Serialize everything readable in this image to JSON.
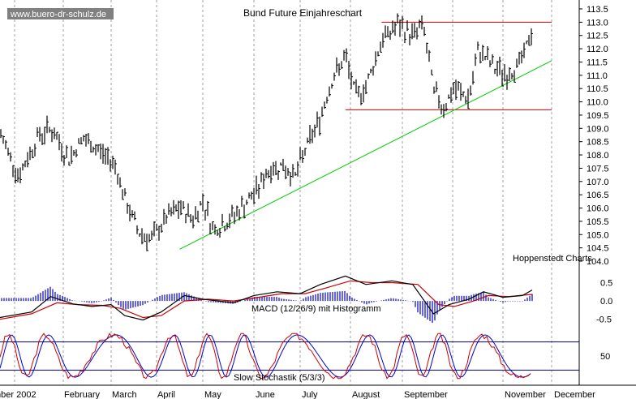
{
  "chart_data": {
    "type": "candlestick",
    "title": "Bund Future Einjahreschart",
    "source_label": "www.buero-dr-schulz.de",
    "provider_label": "Hoppenstedt Charts",
    "price_panel": {
      "y_ticks": [
        "113.5",
        "113.0",
        "112.5",
        "112.0",
        "111.5",
        "111.0",
        "110.5",
        "110.0",
        "109.5",
        "109.0",
        "108.5",
        "108.0",
        "107.5",
        "107.0",
        "106.5",
        "106.0",
        "105.5",
        "105.0",
        "104.5",
        "104.0"
      ],
      "ylim": [
        104.0,
        113.5
      ],
      "x_months": [
        "mber 2002",
        "February",
        "March",
        "April",
        "May",
        "June",
        "July",
        "August",
        "September",
        "November",
        "December"
      ],
      "price_path": [
        {
          "m": 0.0,
          "v": 108.8
        },
        {
          "m": 0.3,
          "v": 107.2
        },
        {
          "m": 0.6,
          "v": 108.7
        },
        {
          "m": 0.8,
          "v": 109.0
        },
        {
          "m": 1.1,
          "v": 107.8
        },
        {
          "m": 1.4,
          "v": 108.6
        },
        {
          "m": 1.8,
          "v": 108.1
        },
        {
          "m": 2.1,
          "v": 107.6
        },
        {
          "m": 2.3,
          "v": 106.3
        },
        {
          "m": 2.6,
          "v": 105.1
        },
        {
          "m": 2.9,
          "v": 104.8
        },
        {
          "m": 3.2,
          "v": 105.6
        },
        {
          "m": 3.5,
          "v": 106.0
        },
        {
          "m": 3.8,
          "v": 105.6
        },
        {
          "m": 4.0,
          "v": 106.3
        },
        {
          "m": 4.2,
          "v": 105.2
        },
        {
          "m": 4.5,
          "v": 105.5
        },
        {
          "m": 4.8,
          "v": 106.1
        },
        {
          "m": 5.0,
          "v": 106.5
        },
        {
          "m": 5.3,
          "v": 107.4
        },
        {
          "m": 5.6,
          "v": 107.6
        },
        {
          "m": 5.9,
          "v": 107.2
        },
        {
          "m": 6.1,
          "v": 108.2
        },
        {
          "m": 6.4,
          "v": 109.4
        },
        {
          "m": 6.6,
          "v": 110.7
        },
        {
          "m": 6.9,
          "v": 111.7
        },
        {
          "m": 7.1,
          "v": 110.2
        },
        {
          "m": 7.3,
          "v": 110.6
        },
        {
          "m": 7.6,
          "v": 112.3
        },
        {
          "m": 7.9,
          "v": 112.9
        },
        {
          "m": 8.2,
          "v": 112.5
        },
        {
          "m": 8.4,
          "v": 112.9
        },
        {
          "m": 8.6,
          "v": 110.4
        },
        {
          "m": 8.8,
          "v": 109.8
        },
        {
          "m": 9.0,
          "v": 110.5
        },
        {
          "m": 9.3,
          "v": 110.1
        },
        {
          "m": 9.5,
          "v": 112.0
        },
        {
          "m": 9.8,
          "v": 111.3
        },
        {
          "m": 10.1,
          "v": 111.0
        },
        {
          "m": 10.4,
          "v": 111.6
        },
        {
          "m": 10.6,
          "v": 112.7
        }
      ],
      "lines": [
        {
          "name": "resistance",
          "color": "#cc0000",
          "from": {
            "m": 7.6,
            "v": 113.0
          },
          "to": {
            "m": 11.0,
            "v": 113.0
          }
        },
        {
          "name": "support",
          "color": "#cc0000",
          "from": {
            "m": 6.9,
            "v": 109.7
          },
          "to": {
            "m": 11.0,
            "v": 109.7
          }
        },
        {
          "name": "uptrend",
          "color": "#00cc00",
          "from": {
            "m": 3.5,
            "v": 104.45
          },
          "to": {
            "m": 11.0,
            "v": 111.55
          }
        }
      ],
      "candle_color": "#000000"
    },
    "macd_panel": {
      "label": "MACD (12/26/9) mit Histogramm",
      "y_ticks": [
        "0.5",
        "0.0",
        "-0.5"
      ],
      "ylim": [
        -0.75,
        0.8
      ],
      "macd_path": [
        {
          "m": 0.0,
          "v": -0.45
        },
        {
          "m": 0.5,
          "v": -0.3
        },
        {
          "m": 0.8,
          "v": 0.12
        },
        {
          "m": 1.2,
          "v": -0.08
        },
        {
          "m": 1.6,
          "v": -0.15
        },
        {
          "m": 2.0,
          "v": -0.1
        },
        {
          "m": 2.3,
          "v": -0.4
        },
        {
          "m": 2.7,
          "v": -0.52
        },
        {
          "m": 3.1,
          "v": -0.3
        },
        {
          "m": 3.6,
          "v": 0.15
        },
        {
          "m": 4.0,
          "v": 0.05
        },
        {
          "m": 4.6,
          "v": -0.05
        },
        {
          "m": 5.0,
          "v": 0.15
        },
        {
          "m": 5.5,
          "v": 0.25
        },
        {
          "m": 6.0,
          "v": 0.2
        },
        {
          "m": 6.4,
          "v": 0.45
        },
        {
          "m": 6.9,
          "v": 0.68
        },
        {
          "m": 7.3,
          "v": 0.45
        },
        {
          "m": 7.8,
          "v": 0.55
        },
        {
          "m": 8.2,
          "v": 0.45
        },
        {
          "m": 8.6,
          "v": -0.35
        },
        {
          "m": 8.9,
          "v": -0.1
        },
        {
          "m": 9.3,
          "v": 0.05
        },
        {
          "m": 9.6,
          "v": 0.25
        },
        {
          "m": 10.0,
          "v": 0.1
        },
        {
          "m": 10.4,
          "v": 0.15
        },
        {
          "m": 10.6,
          "v": 0.3
        }
      ],
      "signal_path": [
        {
          "m": 0.0,
          "v": -0.5
        },
        {
          "m": 0.5,
          "v": -0.35
        },
        {
          "m": 0.9,
          "v": -0.05
        },
        {
          "m": 1.3,
          "v": -0.1
        },
        {
          "m": 1.8,
          "v": -0.12
        },
        {
          "m": 2.2,
          "v": -0.2
        },
        {
          "m": 2.7,
          "v": -0.45
        },
        {
          "m": 3.1,
          "v": -0.4
        },
        {
          "m": 3.6,
          "v": 0.0
        },
        {
          "m": 4.1,
          "v": 0.05
        },
        {
          "m": 4.6,
          "v": 0.0
        },
        {
          "m": 5.1,
          "v": 0.1
        },
        {
          "m": 5.6,
          "v": 0.2
        },
        {
          "m": 6.1,
          "v": 0.2
        },
        {
          "m": 6.5,
          "v": 0.35
        },
        {
          "m": 7.0,
          "v": 0.55
        },
        {
          "m": 7.4,
          "v": 0.5
        },
        {
          "m": 7.8,
          "v": 0.5
        },
        {
          "m": 8.3,
          "v": 0.45
        },
        {
          "m": 8.7,
          "v": -0.1
        },
        {
          "m": 9.0,
          "v": -0.15
        },
        {
          "m": 9.4,
          "v": 0.0
        },
        {
          "m": 9.7,
          "v": 0.15
        },
        {
          "m": 10.1,
          "v": 0.12
        },
        {
          "m": 10.6,
          "v": 0.18
        }
      ],
      "macd_color": "#000000",
      "signal_color": "#cc0000",
      "hist_color": "#0000cc"
    },
    "stoch_panel": {
      "label": "Slow Stochastik (5/3/3)",
      "y_ticks": [
        "50"
      ],
      "upper_line": 80,
      "lower_line": 20,
      "k_color": "#cc0000",
      "d_color": "#0000cc",
      "band_color": "#000080"
    },
    "colors": {
      "background": "#ffffff",
      "grid": "#a0a0a0",
      "source_bg": "#808080"
    }
  }
}
